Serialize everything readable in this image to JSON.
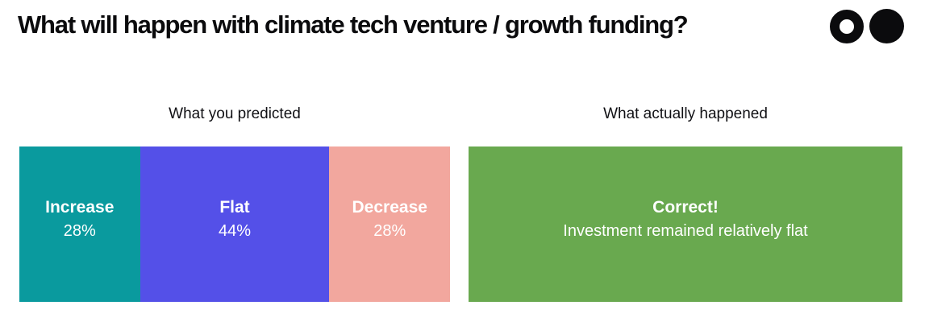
{
  "title": "What will happen with climate tech venture / growth funding?",
  "logo": {
    "left_icon": "donut-circle-icon",
    "right_icon": "filled-circle-icon",
    "color": "#0b0b0d"
  },
  "chart_data": [
    {
      "type": "bar",
      "subtype": "horizontal-stacked-percentage",
      "title": "What you predicted",
      "unit": "%",
      "xlim": [
        0,
        100
      ],
      "categories": [
        "Increase",
        "Flat",
        "Decrease"
      ],
      "values": [
        28,
        44,
        28
      ],
      "segments": [
        {
          "label": "Increase",
          "value": "28%",
          "pct": 28,
          "color": "#0A9A9E"
        },
        {
          "label": "Flat",
          "value": "44%",
          "pct": 44,
          "color": "#5450E8"
        },
        {
          "label": "Decrease",
          "value": "28%",
          "pct": 28,
          "color": "#F2A79E"
        }
      ]
    },
    {
      "type": "bar",
      "subtype": "single-outcome",
      "title": "What actually happened",
      "result": {
        "label": "Correct!",
        "sublabel": "Investment remained relatively flat",
        "pct": 100,
        "color": "#69A94F"
      }
    }
  ]
}
